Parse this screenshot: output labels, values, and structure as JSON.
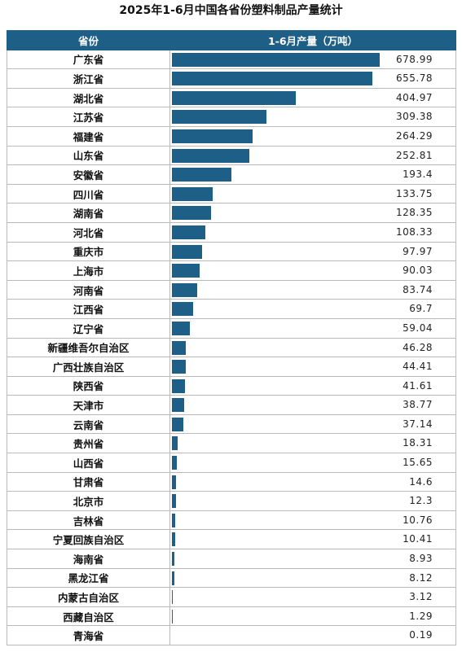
{
  "title": "2025年1-6月中国各省份塑料制品产量统计",
  "header": {
    "province": "省份",
    "value": "1-6月产量（万吨）"
  },
  "colors": {
    "bar": "#1e5f88",
    "header": "#1e5f88"
  },
  "chart_data": {
    "type": "bar",
    "orientation": "horizontal",
    "title": "2025年1-6月中国各省份塑料制品产量统计",
    "xlabel": "1-6月产量（万吨）",
    "ylabel": "省份",
    "rows": [
      {
        "province": "广东省",
        "value": "678.99"
      },
      {
        "province": "浙江省",
        "value": "655.78"
      },
      {
        "province": "湖北省",
        "value": "404.97"
      },
      {
        "province": "江苏省",
        "value": "309.38"
      },
      {
        "province": "福建省",
        "value": "264.29"
      },
      {
        "province": "山东省",
        "value": "252.81"
      },
      {
        "province": "安徽省",
        "value": "193.4"
      },
      {
        "province": "四川省",
        "value": "133.75"
      },
      {
        "province": "湖南省",
        "value": "128.35"
      },
      {
        "province": "河北省",
        "value": "108.33"
      },
      {
        "province": "重庆市",
        "value": "97.97"
      },
      {
        "province": "上海市",
        "value": "90.03"
      },
      {
        "province": "河南省",
        "value": "83.74"
      },
      {
        "province": "江西省",
        "value": "69.7"
      },
      {
        "province": "辽宁省",
        "value": "59.04"
      },
      {
        "province": "新疆维吾尔自治区",
        "value": "46.28"
      },
      {
        "province": "广西壮族自治区",
        "value": "44.41"
      },
      {
        "province": "陕西省",
        "value": "41.61"
      },
      {
        "province": "天津市",
        "value": "38.77"
      },
      {
        "province": "云南省",
        "value": "37.14"
      },
      {
        "province": "贵州省",
        "value": "18.31"
      },
      {
        "province": "山西省",
        "value": "15.65"
      },
      {
        "province": "甘肃省",
        "value": "14.6"
      },
      {
        "province": "北京市",
        "value": "12.3"
      },
      {
        "province": "吉林省",
        "value": "10.76"
      },
      {
        "province": "宁夏回族自治区",
        "value": "10.41"
      },
      {
        "province": "海南省",
        "value": "8.93"
      },
      {
        "province": "黑龙江省",
        "value": "8.12"
      },
      {
        "province": "内蒙古自治区",
        "value": "3.12"
      },
      {
        "province": "西藏自治区",
        "value": "1.29"
      },
      {
        "province": "青海省",
        "value": "0.19"
      }
    ]
  }
}
